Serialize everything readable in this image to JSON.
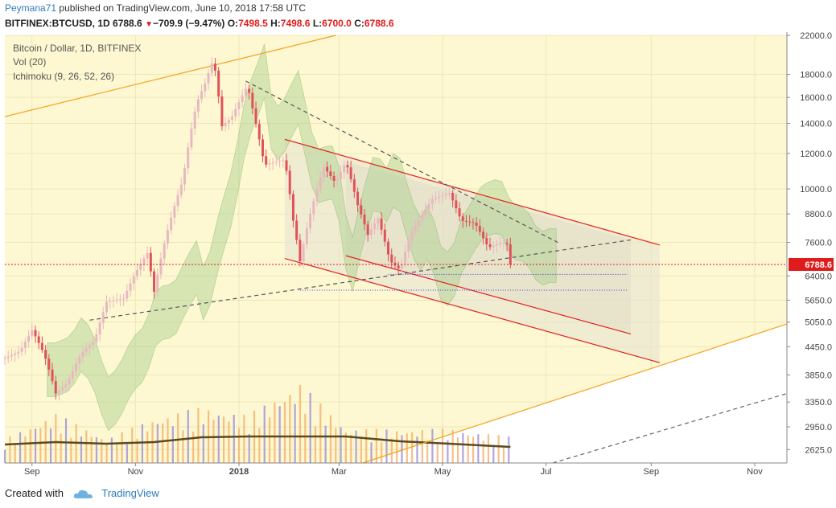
{
  "header": {
    "author": "Peymana71",
    "published_text": "published on TradingView.com, June 10, 2018 17:58 UTC",
    "symbol": "BITFINEX:BTCUSD, 1D",
    "last": "6788.6",
    "change_arrow": "▼",
    "change": "−709.9 (−9.47%)",
    "o_label": "O:",
    "o_value": "7498.5",
    "h_label": "H:",
    "h_value": "7498.6",
    "l_label": "L:",
    "l_value": "6700.0",
    "c_label": "C:",
    "c_value": "6788.6"
  },
  "legend": {
    "title": "Bitcoin / Dollar, 1D, BITFINEX",
    "volume": "Vol (20)",
    "ichimoku": "Ichimoku (9, 26, 52, 26)"
  },
  "price_tag": "6788.6",
  "footer": {
    "created_with": "Created with",
    "brand": "TradingView"
  },
  "colors": {
    "up": "#e8b8c0",
    "down": "#e0525a",
    "cloud_bull": "#a8d08d",
    "cloud_bear": "#f3b28c",
    "trend_red": "#e42020",
    "trend_orange": "#f4a11b",
    "ma": "#5c4a1c"
  },
  "chart_data": {
    "type": "candlestick",
    "y_scale": "log",
    "ylim": [
      2450,
      22000
    ],
    "y_ticks": [
      22000,
      18000,
      16000,
      14000,
      12000,
      10000,
      8800,
      7600,
      6400,
      5650,
      5050,
      4450,
      3850,
      3350,
      2950,
      2625
    ],
    "y_tick_labels": [
      "22000.0",
      "18000.0",
      "16000.0",
      "14000.0",
      "12000.0",
      "10000.0",
      "8800.0",
      "7600.0",
      "6400.0",
      "5650.0",
      "5050.0",
      "4450.0",
      "3850.0",
      "3350.0",
      "2950.0",
      "2625.0"
    ],
    "x_ticks": [
      "Sep",
      "Nov",
      "2018",
      "Mar",
      "May",
      "Jul",
      "Sep",
      "Nov"
    ],
    "x_tick_dates": [
      "2017-09-01",
      "2017-11-01",
      "2018-01-01",
      "2018-03-01",
      "2018-05-01",
      "2018-07-01",
      "2018-09-01",
      "2018-11-01"
    ],
    "x_range": [
      "2017-08-16",
      "2018-11-20"
    ],
    "last_price": 6788.6,
    "price_series": [
      [
        "2017-08-16",
        4200
      ],
      [
        "2017-08-25",
        4350
      ],
      [
        "2017-09-01",
        4850
      ],
      [
        "2017-09-08",
        4300
      ],
      [
        "2017-09-15",
        3500
      ],
      [
        "2017-09-22",
        3700
      ],
      [
        "2017-09-30",
        4300
      ],
      [
        "2017-10-08",
        4600
      ],
      [
        "2017-10-15",
        5600
      ],
      [
        "2017-10-25",
        5700
      ],
      [
        "2017-11-01",
        6500
      ],
      [
        "2017-11-08",
        7200
      ],
      [
        "2017-11-12",
        5900
      ],
      [
        "2017-11-20",
        8100
      ],
      [
        "2017-11-29",
        10500
      ],
      [
        "2017-12-07",
        15500
      ],
      [
        "2017-12-12",
        17200
      ],
      [
        "2017-12-17",
        19500
      ],
      [
        "2017-12-22",
        13800
      ],
      [
        "2017-12-28",
        14500
      ],
      [
        "2018-01-06",
        17000
      ],
      [
        "2018-01-10",
        14500
      ],
      [
        "2018-01-16",
        11300
      ],
      [
        "2018-01-22",
        11500
      ],
      [
        "2018-01-28",
        11600
      ],
      [
        "2018-02-02",
        8500
      ],
      [
        "2018-02-06",
        6900
      ],
      [
        "2018-02-12",
        8800
      ],
      [
        "2018-02-20",
        11200
      ],
      [
        "2018-02-27",
        10300
      ],
      [
        "2018-03-05",
        11500
      ],
      [
        "2018-03-12",
        9200
      ],
      [
        "2018-03-18",
        7900
      ],
      [
        "2018-03-24",
        8600
      ],
      [
        "2018-03-31",
        6900
      ],
      [
        "2018-04-06",
        6600
      ],
      [
        "2018-04-12",
        7900
      ],
      [
        "2018-04-20",
        8900
      ],
      [
        "2018-04-25",
        9500
      ],
      [
        "2018-05-05",
        9800
      ],
      [
        "2018-05-12",
        8500
      ],
      [
        "2018-05-20",
        8400
      ],
      [
        "2018-05-28",
        7400
      ],
      [
        "2018-06-05",
        7600
      ],
      [
        "2018-06-09",
        7500
      ],
      [
        "2018-06-10",
        6788.6
      ]
    ],
    "volume_series": [
      [
        "2017-09-15",
        620
      ],
      [
        "2017-10-15",
        300
      ],
      [
        "2017-11-12",
        560
      ],
      [
        "2017-12-10",
        700
      ],
      [
        "2018-01-06",
        600
      ],
      [
        "2018-02-06",
        1000
      ],
      [
        "2018-03-05",
        430
      ],
      [
        "2018-04-06",
        420
      ],
      [
        "2018-05-05",
        430
      ],
      [
        "2018-06-10",
        330
      ]
    ],
    "volume_ma_series": [
      [
        "2017-08-16",
        230
      ],
      [
        "2017-09-15",
        260
      ],
      [
        "2017-10-15",
        240
      ],
      [
        "2017-11-12",
        260
      ],
      [
        "2017-12-10",
        320
      ],
      [
        "2018-01-06",
        330
      ],
      [
        "2018-02-06",
        330
      ],
      [
        "2018-03-05",
        330
      ],
      [
        "2018-04-06",
        270
      ],
      [
        "2018-05-05",
        240
      ],
      [
        "2018-06-10",
        200
      ]
    ],
    "trendlines": [
      {
        "style": "orange",
        "p1": [
          "2017-08-16",
          14500
        ],
        "p2": [
          "2018-02-27",
          22000
        ]
      },
      {
        "style": "orange",
        "p1": [
          "2018-03-15",
          2450
        ],
        "p2": [
          "2018-11-20",
          5000
        ]
      },
      {
        "style": "red",
        "p1": [
          "2018-01-28",
          12900
        ],
        "p2": [
          "2018-09-06",
          7500
        ]
      },
      {
        "style": "red",
        "p1": [
          "2018-01-28",
          7000
        ],
        "p2": [
          "2018-09-06",
          4100
        ]
      },
      {
        "style": "red",
        "p1": [
          "2018-03-05",
          7100
        ],
        "p2": [
          "2018-08-20",
          4750
        ]
      },
      {
        "style": "dashed",
        "p1": [
          "2018-01-05",
          17400
        ],
        "p2": [
          "2018-07-08",
          7600
        ]
      },
      {
        "style": "dashed",
        "p1": [
          "2017-10-05",
          5100
        ],
        "p2": [
          "2018-08-20",
          7700
        ]
      },
      {
        "style": "dashed-grey",
        "p1": [
          "2018-07-05",
          2450
        ],
        "p2": [
          "2018-11-20",
          3500
        ]
      }
    ]
  }
}
